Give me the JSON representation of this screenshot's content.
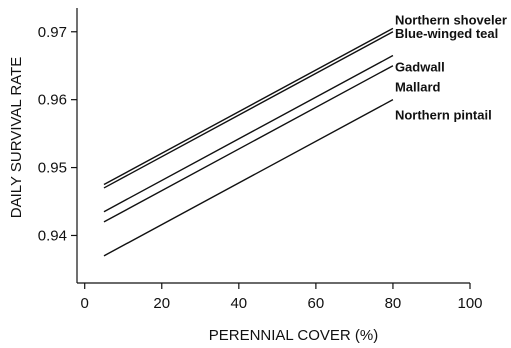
{
  "chart_data": {
    "type": "line",
    "title": "",
    "xlabel": "PERENNIAL COVER (%)",
    "ylabel": "DAILY SURVIVAL RATE",
    "xlim": [
      -2,
      100
    ],
    "ylim": [
      0.933,
      0.9735
    ],
    "xticks": [
      0,
      20,
      40,
      60,
      80,
      100
    ],
    "xtick_labels": [
      "0",
      "20",
      "40",
      "60",
      "80",
      "100"
    ],
    "yticks": [
      0.94,
      0.95,
      0.96,
      0.97
    ],
    "ytick_labels": [
      "0.94",
      "0.95",
      "0.96",
      "0.97"
    ],
    "grid": false,
    "legend": "direct labels at line ends",
    "series": [
      {
        "name": "Northern shoveler",
        "x": [
          5,
          80
        ],
        "y": [
          0.9475,
          0.9705
        ]
      },
      {
        "name": "Blue-winged teal",
        "x": [
          5,
          80
        ],
        "y": [
          0.947,
          0.97
        ]
      },
      {
        "name": "Gadwall",
        "x": [
          5,
          80
        ],
        "y": [
          0.9435,
          0.9665
        ]
      },
      {
        "name": "Mallard",
        "x": [
          5,
          80
        ],
        "y": [
          0.942,
          0.965
        ]
      },
      {
        "name": "Northern pintail",
        "x": [
          5,
          80
        ],
        "y": [
          0.937,
          0.96
        ]
      }
    ]
  }
}
